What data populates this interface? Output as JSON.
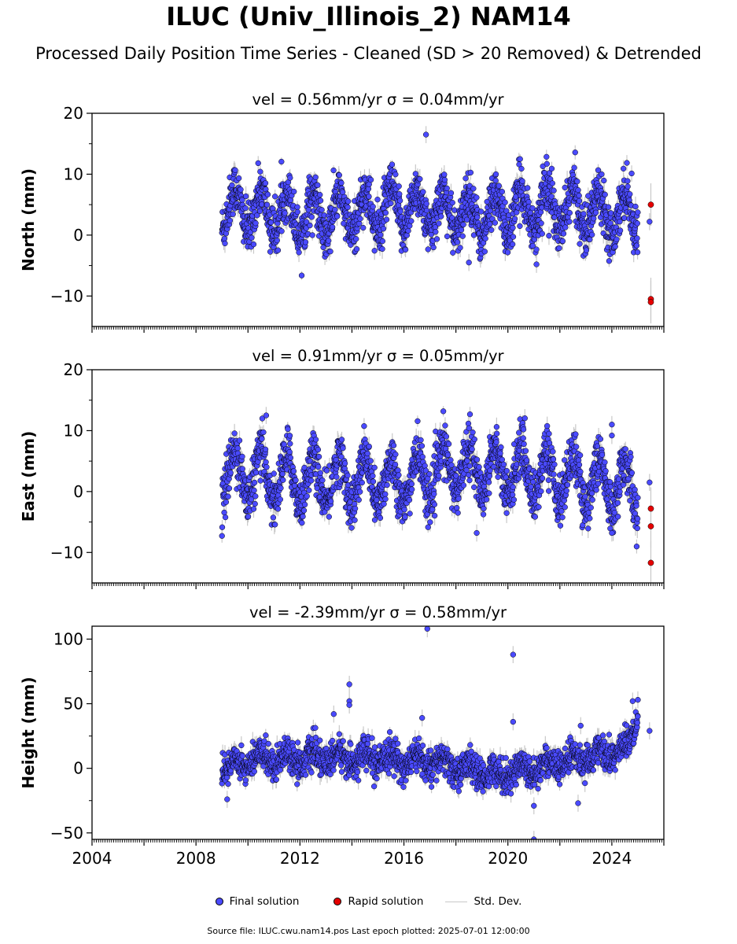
{
  "title": "ILUC (Univ_Illinois_2) NAM14",
  "subtitle": "Processed Daily Position Time Series - Cleaned (SD > 20 Removed) & Detrended",
  "footer": "Source file: ILUC.cwu.nam14.pos  Last epoch plotted: 2025-07-01 12:00:00",
  "legend": {
    "final_label": "Final solution",
    "rapid_label": "Rapid solution",
    "std_label": "Std. Dev."
  },
  "colors": {
    "final": "#4a4aff",
    "rapid": "#e60000",
    "std": "#c8c8c8",
    "marker_edge": "#000000"
  },
  "chart_data": [
    {
      "type": "scatter",
      "title_prefix": "vel = 0.56mm/yr",
      "title_sigma": "σ = 0.04mm/yr",
      "ylabel": "North (mm)",
      "ylim": [
        -15,
        20
      ],
      "yticks": [
        -10,
        0,
        10,
        20
      ],
      "xlim": [
        2004,
        2026
      ],
      "xticks": [
        2004,
        2008,
        2012,
        2016,
        2020,
        2024
      ],
      "show_xtick_labels": false,
      "series": [
        {
          "name": "Final solution",
          "kind": "final",
          "x_range": [
            2009.0,
            2025.0
          ],
          "level_by_year": [
            [
              2009.0,
              4.5
            ],
            [
              2013.0,
              3.0
            ],
            [
              2016.0,
              4.5
            ],
            [
              2019.0,
              3.0
            ],
            [
              2021.0,
              4.5
            ],
            [
              2025.0,
              3.5
            ]
          ],
          "seasonal_amplitude": 3.5,
          "noise": 2.0,
          "outliers": [
            [
              2016.85,
              16.5
            ],
            [
              2021.5,
              11.7
            ],
            [
              2018.5,
              -4.5
            ],
            [
              2020.3,
              6.3
            ],
            [
              2025.45,
              2.2
            ],
            [
              2021.1,
              -4.8
            ]
          ]
        },
        {
          "name": "Rapid solution",
          "kind": "rapid",
          "points": [
            [
              2025.5,
              5.0
            ],
            [
              2025.5,
              -10.5
            ],
            [
              2025.5,
              -11.0
            ]
          ]
        }
      ]
    },
    {
      "type": "scatter",
      "title_prefix": "vel = 0.91mm/yr",
      "title_sigma": "σ = 0.05mm/yr",
      "ylabel": "East (mm)",
      "ylim": [
        -15,
        20
      ],
      "yticks": [
        -10,
        0,
        10,
        20
      ],
      "xlim": [
        2004,
        2026
      ],
      "xticks": [
        2004,
        2008,
        2012,
        2016,
        2020,
        2024
      ],
      "show_xtick_labels": false,
      "series": [
        {
          "name": "Final solution",
          "kind": "final",
          "x_range": [
            2009.0,
            2025.0
          ],
          "level_by_year": [
            [
              2009.0,
              3.0
            ],
            [
              2012.0,
              2.0
            ],
            [
              2016.0,
              1.5
            ],
            [
              2018.0,
              4.0
            ],
            [
              2021.0,
              3.0
            ],
            [
              2025.0,
              0.5
            ]
          ],
          "seasonal_amplitude": 4.0,
          "noise": 2.0,
          "outliers": [
            [
              2010.7,
              12.5
            ],
            [
              2024.0,
              11.0
            ],
            [
              2024.0,
              9.2
            ],
            [
              2020.6,
              10.2
            ],
            [
              2018.8,
              -6.8
            ],
            [
              2024.0,
              -6.8
            ],
            [
              2025.45,
              1.5
            ]
          ]
        },
        {
          "name": "Rapid solution",
          "kind": "rapid",
          "points": [
            [
              2025.5,
              -2.8
            ],
            [
              2025.5,
              -5.7
            ],
            [
              2025.5,
              -11.7
            ]
          ]
        }
      ]
    },
    {
      "type": "scatter",
      "title_prefix": "vel = -2.39mm/yr",
      "title_sigma": "σ = 0.58mm/yr",
      "ylabel": "Height (mm)",
      "ylim": [
        -55,
        110
      ],
      "yticks": [
        -50,
        0,
        50,
        100
      ],
      "xlim": [
        2004,
        2026
      ],
      "xticks": [
        2004,
        2008,
        2012,
        2016,
        2020,
        2024
      ],
      "show_xtick_labels": true,
      "series": [
        {
          "name": "Final solution",
          "kind": "final",
          "x_range": [
            2009.0,
            2025.0
          ],
          "level_by_year": [
            [
              2009.0,
              0.0
            ],
            [
              2010.5,
              8.0
            ],
            [
              2014.0,
              8.0
            ],
            [
              2017.0,
              5.0
            ],
            [
              2019.5,
              -5.0
            ],
            [
              2021.5,
              2.0
            ],
            [
              2023.5,
              10.0
            ],
            [
              2024.6,
              15.0
            ],
            [
              2025.0,
              38.0
            ]
          ],
          "seasonal_amplitude": 5.0,
          "noise": 6.0,
          "outliers": [
            [
              2016.9,
              108.0
            ],
            [
              2020.2,
              88.0
            ],
            [
              2020.2,
              36.0
            ],
            [
              2013.9,
              65.0
            ],
            [
              2013.9,
              52.0
            ],
            [
              2013.9,
              49.0
            ],
            [
              2013.3,
              42.0
            ],
            [
              2016.7,
              39.0
            ],
            [
              2022.8,
              33.0
            ],
            [
              2021.0,
              -29.0
            ],
            [
              2021.0,
              -55.0
            ],
            [
              2022.7,
              -27.0
            ],
            [
              2009.2,
              -24.0
            ],
            [
              2025.45,
              29.0
            ],
            [
              2024.8,
              52.0
            ],
            [
              2025.0,
              53.0
            ]
          ]
        }
      ]
    }
  ]
}
